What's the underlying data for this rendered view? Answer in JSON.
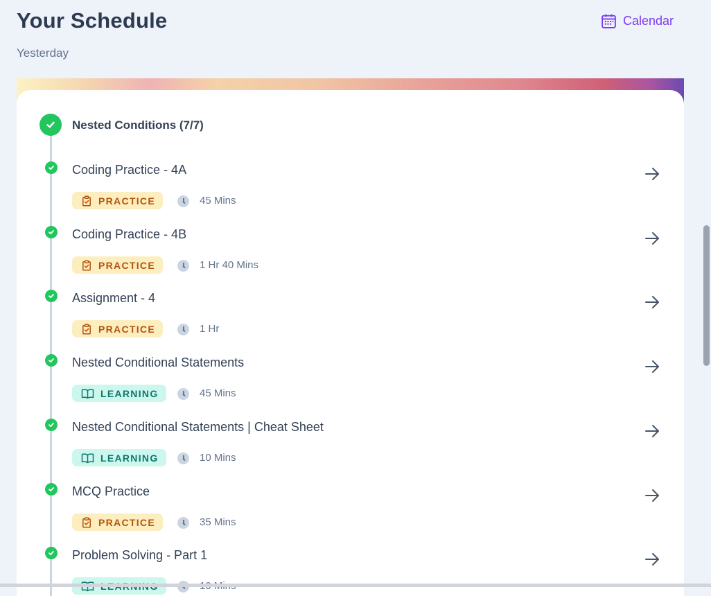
{
  "header": {
    "title": "Your Schedule",
    "subtitle": "Yesterday",
    "calendar_label": "Calendar"
  },
  "colors": {
    "accent": "#7c3aed",
    "complete": "#22c55e",
    "practice_bg": "#fdeec0",
    "practice_fg": "#b45309",
    "learning_bg": "#ccf7ed",
    "learning_fg": "#0f766e"
  },
  "module": {
    "title": "Nested Conditions (7/7)",
    "status_icon": "check-circle-icon"
  },
  "items": [
    {
      "title": "Coding Practice - 4A",
      "tag": "PRACTICE",
      "tag_type": "practice",
      "tag_icon": "clipboard-check-icon",
      "duration": "45 Mins"
    },
    {
      "title": "Coding Practice - 4B",
      "tag": "PRACTICE",
      "tag_type": "practice",
      "tag_icon": "clipboard-check-icon",
      "duration": "1 Hr 40 Mins"
    },
    {
      "title": "Assignment - 4",
      "tag": "PRACTICE",
      "tag_type": "practice",
      "tag_icon": "clipboard-check-icon",
      "duration": "1 Hr"
    },
    {
      "title": "Nested Conditional Statements",
      "tag": "LEARNING",
      "tag_type": "learning",
      "tag_icon": "book-open-icon",
      "duration": "45 Mins"
    },
    {
      "title": "Nested Conditional Statements | Cheat Sheet",
      "tag": "LEARNING",
      "tag_type": "learning",
      "tag_icon": "book-open-icon",
      "duration": "10 Mins"
    },
    {
      "title": "MCQ Practice",
      "tag": "PRACTICE",
      "tag_type": "practice",
      "tag_icon": "clipboard-check-icon",
      "duration": "35 Mins"
    },
    {
      "title": "Problem Solving - Part 1",
      "tag": "LEARNING",
      "tag_type": "learning",
      "tag_icon": "book-open-icon",
      "duration": "10 Mins"
    }
  ]
}
